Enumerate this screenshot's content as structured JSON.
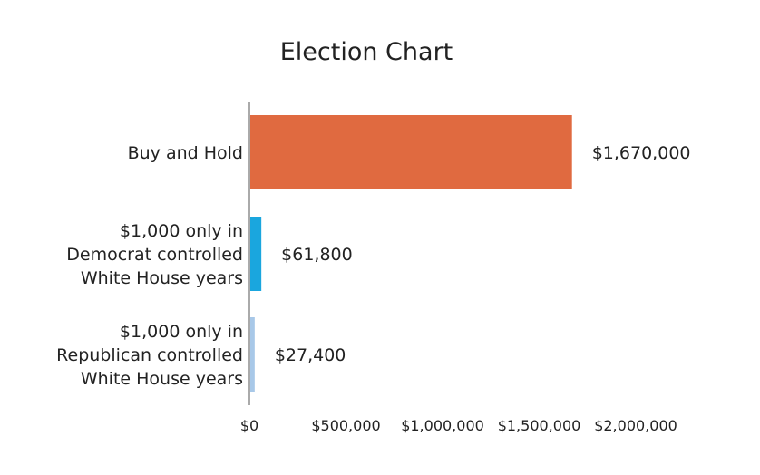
{
  "chart_data": {
    "type": "bar",
    "orientation": "horizontal",
    "title": "Election Chart",
    "xlabel": "",
    "ylabel": "",
    "xlim": [
      0,
      2000000
    ],
    "x_ticks": [
      0,
      500000,
      1000000,
      1500000,
      2000000
    ],
    "x_tick_labels": [
      "$0",
      "$500,000",
      "$1,000,000",
      "$1,500,000",
      "$2,000,000"
    ],
    "grid": false,
    "legend": "none",
    "categories": [
      [
        "Buy and Hold"
      ],
      [
        "$1,000 only in",
        "Democrat controlled",
        "White House years"
      ],
      [
        "$1,000 only in",
        "Republican controlled",
        "White House years"
      ]
    ],
    "values": [
      1670000,
      61800,
      27400
    ],
    "value_labels": [
      "$1,670,000",
      "$61,800",
      "$27,400"
    ],
    "colors": [
      "#e06a40",
      "#1aa6de",
      "#a8c8e8"
    ],
    "axis_color": "#aaaaaa"
  }
}
